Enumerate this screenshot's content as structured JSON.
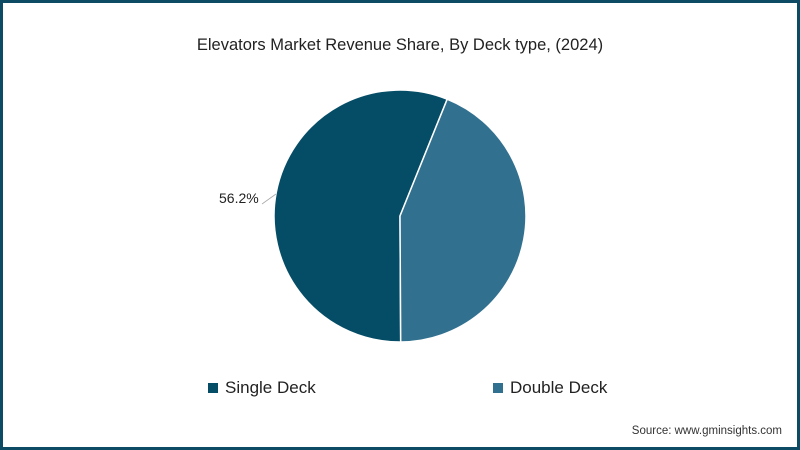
{
  "chart_data": {
    "type": "pie",
    "title": "Elevators Market Revenue Share, By Deck type, (2024)",
    "categories": [
      "Single Deck",
      "Double Deck"
    ],
    "values": [
      56.2,
      43.8
    ],
    "colors": [
      "#054d66",
      "#31708f"
    ],
    "data_labels": [
      "56.2%",
      ""
    ],
    "legend_position": "bottom",
    "source": "Source: www.gminsights.com"
  },
  "title": "Elevators Market Revenue Share, By Deck type, (2024)",
  "labels": {
    "single_deck_pct": "56.2%"
  },
  "legend": [
    {
      "label": "Single Deck",
      "color": "#054d66"
    },
    {
      "label": "Double Deck",
      "color": "#31708f"
    }
  ],
  "source": "Source: www.gminsights.com",
  "colors": {
    "border": "#0d4a63",
    "single": "#054d66",
    "double": "#31708f"
  }
}
